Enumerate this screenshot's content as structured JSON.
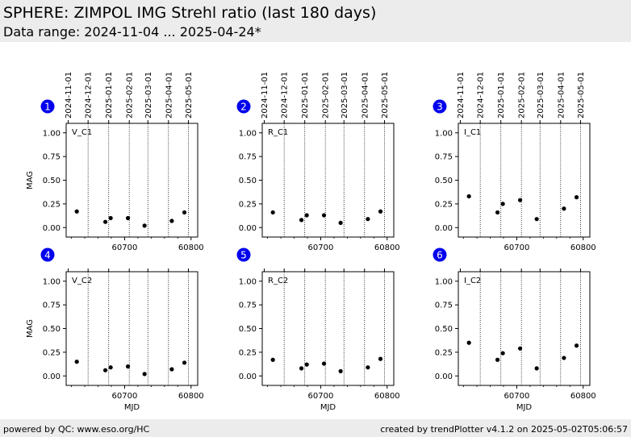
{
  "header": {
    "title": "SPHERE: ZIMPOL IMG Strehl ratio (last 180 days)",
    "subtitle": "Data range: 2024-11-04 ... 2025-04-24*"
  },
  "footer": {
    "left": "powered by QC: www.eso.org/HC",
    "right": "created by trendPlotter v4.1.2 on 2025-05-02T05:06:57"
  },
  "colors": {
    "badge": "#0000ee",
    "points": "#000000",
    "header_bg": "#ececec"
  },
  "chart_data": {
    "type": "scatter",
    "x_axis": {
      "label": "MJD",
      "lim": [
        60612,
        60810
      ],
      "ticks": [
        60700,
        60800
      ]
    },
    "y_axis": {
      "label": "MAG",
      "lim": [
        -0.1,
        1.1
      ],
      "ticks": [
        0.0,
        0.25,
        0.5,
        0.75,
        1.0
      ],
      "tick_labels": [
        "0.00",
        "0.25",
        "0.50",
        "0.75",
        "1.00"
      ]
    },
    "date_ticks": {
      "labels": [
        "2024-11-01",
        "2024-12-01",
        "2025-01-01",
        "2025-02-01",
        "2025-03-01",
        "2025-04-01",
        "2025-05-01"
      ],
      "mjd": [
        60615,
        60645,
        60676,
        60707,
        60735,
        60766,
        60796
      ]
    },
    "vlines_mjd": [
      60645,
      60676,
      60707,
      60735,
      60766,
      60796
    ],
    "panels": [
      {
        "badge": "1",
        "label": "V_C1",
        "x": [
          60628,
          60671,
          60679,
          60705,
          60730,
          60771,
          60790
        ],
        "y": [
          0.17,
          0.06,
          0.1,
          0.1,
          0.02,
          0.07,
          0.16
        ]
      },
      {
        "badge": "2",
        "label": "R_C1",
        "x": [
          60628,
          60671,
          60679,
          60705,
          60730,
          60771,
          60790
        ],
        "y": [
          0.16,
          0.08,
          0.13,
          0.13,
          0.05,
          0.09,
          0.17
        ]
      },
      {
        "badge": "3",
        "label": "I_C1",
        "x": [
          60628,
          60671,
          60679,
          60705,
          60730,
          60771,
          60790
        ],
        "y": [
          0.33,
          0.16,
          0.25,
          0.29,
          0.09,
          0.2,
          0.32
        ]
      },
      {
        "badge": "4",
        "label": "V_C2",
        "x": [
          60628,
          60671,
          60679,
          60705,
          60730,
          60771,
          60790
        ],
        "y": [
          0.15,
          0.06,
          0.09,
          0.1,
          0.02,
          0.07,
          0.14
        ]
      },
      {
        "badge": "5",
        "label": "R_C2",
        "x": [
          60628,
          60671,
          60679,
          60705,
          60730,
          60771,
          60790
        ],
        "y": [
          0.17,
          0.08,
          0.12,
          0.13,
          0.05,
          0.09,
          0.18
        ]
      },
      {
        "badge": "6",
        "label": "I_C2",
        "x": [
          60628,
          60671,
          60679,
          60705,
          60730,
          60771,
          60790
        ],
        "y": [
          0.35,
          0.17,
          0.24,
          0.29,
          0.08,
          0.19,
          0.32
        ]
      }
    ]
  }
}
